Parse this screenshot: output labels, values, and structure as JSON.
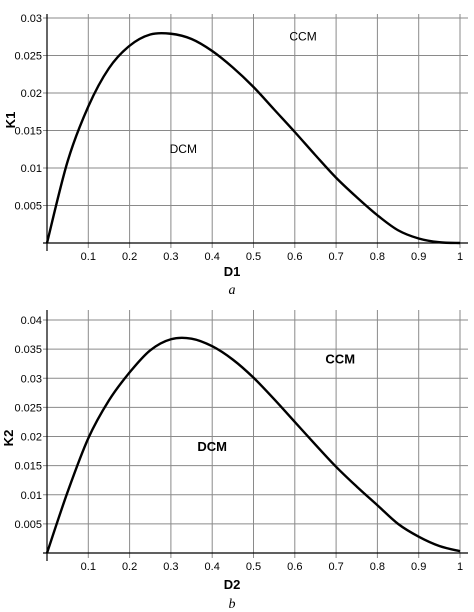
{
  "chart_data": [
    {
      "type": "line",
      "caption": "a",
      "xlabel": "D1",
      "ylabel": "K1",
      "xlim": [
        0,
        1
      ],
      "ylim": [
        0,
        0.03
      ],
      "xticks": [
        "0.1",
        "0.2",
        "0.3",
        "0.4",
        "0.5",
        "0.6",
        "0.7",
        "0.8",
        "0.9",
        "1"
      ],
      "yticks": [
        "0.005",
        "0.01",
        "0.015",
        "0.02",
        "0.025",
        "0.03"
      ],
      "grid": true,
      "annotations": [
        {
          "text": "DCM",
          "x": 0.33,
          "y": 0.012,
          "bold": false
        },
        {
          "text": "CCM",
          "x": 0.62,
          "y": 0.027,
          "bold": false
        }
      ],
      "series": [
        {
          "x": [
            0,
            0.05,
            0.1,
            0.15,
            0.2,
            0.25,
            0.3,
            0.35,
            0.4,
            0.45,
            0.5,
            0.55,
            0.6,
            0.65,
            0.7,
            0.75,
            0.8,
            0.85,
            0.9,
            0.95,
            1
          ],
          "values": [
            0,
            0.0109,
            0.0182,
            0.0233,
            0.0263,
            0.0278,
            0.0279,
            0.0272,
            0.0256,
            0.0234,
            0.0208,
            0.0178,
            0.0148,
            0.0117,
            0.0087,
            0.0061,
            0.0037,
            0.0017,
            0.0006,
            0.0001,
            0
          ]
        }
      ]
    },
    {
      "type": "line",
      "caption": "b",
      "xlabel": "D2",
      "ylabel": "K2",
      "xlim": [
        0,
        1
      ],
      "ylim": [
        0,
        0.04
      ],
      "xticks": [
        "0.1",
        "0.2",
        "0.3",
        "0.4",
        "0.5",
        "0.6",
        "0.7",
        "0.8",
        "0.9",
        "1"
      ],
      "yticks": [
        "0.005",
        "0.01",
        "0.015",
        "0.02",
        "0.025",
        "0.03",
        "0.035",
        "0.04"
      ],
      "grid": true,
      "annotations": [
        {
          "text": "DCM",
          "x": 0.4,
          "y": 0.0175,
          "bold": true
        },
        {
          "text": "CCM",
          "x": 0.71,
          "y": 0.0325,
          "bold": true
        }
      ],
      "series": [
        {
          "x": [
            0,
            0.05,
            0.1,
            0.15,
            0.2,
            0.25,
            0.3,
            0.35,
            0.4,
            0.45,
            0.5,
            0.55,
            0.6,
            0.65,
            0.7,
            0.75,
            0.8,
            0.85,
            0.9,
            0.95,
            1
          ],
          "values": [
            0,
            0.0105,
            0.0197,
            0.0262,
            0.031,
            0.0348,
            0.0367,
            0.0368,
            0.0355,
            0.0332,
            0.0301,
            0.0264,
            0.0225,
            0.0186,
            0.0148,
            0.0114,
            0.0082,
            0.005,
            0.0028,
            0.0012,
            0.0003
          ]
        }
      ]
    }
  ]
}
